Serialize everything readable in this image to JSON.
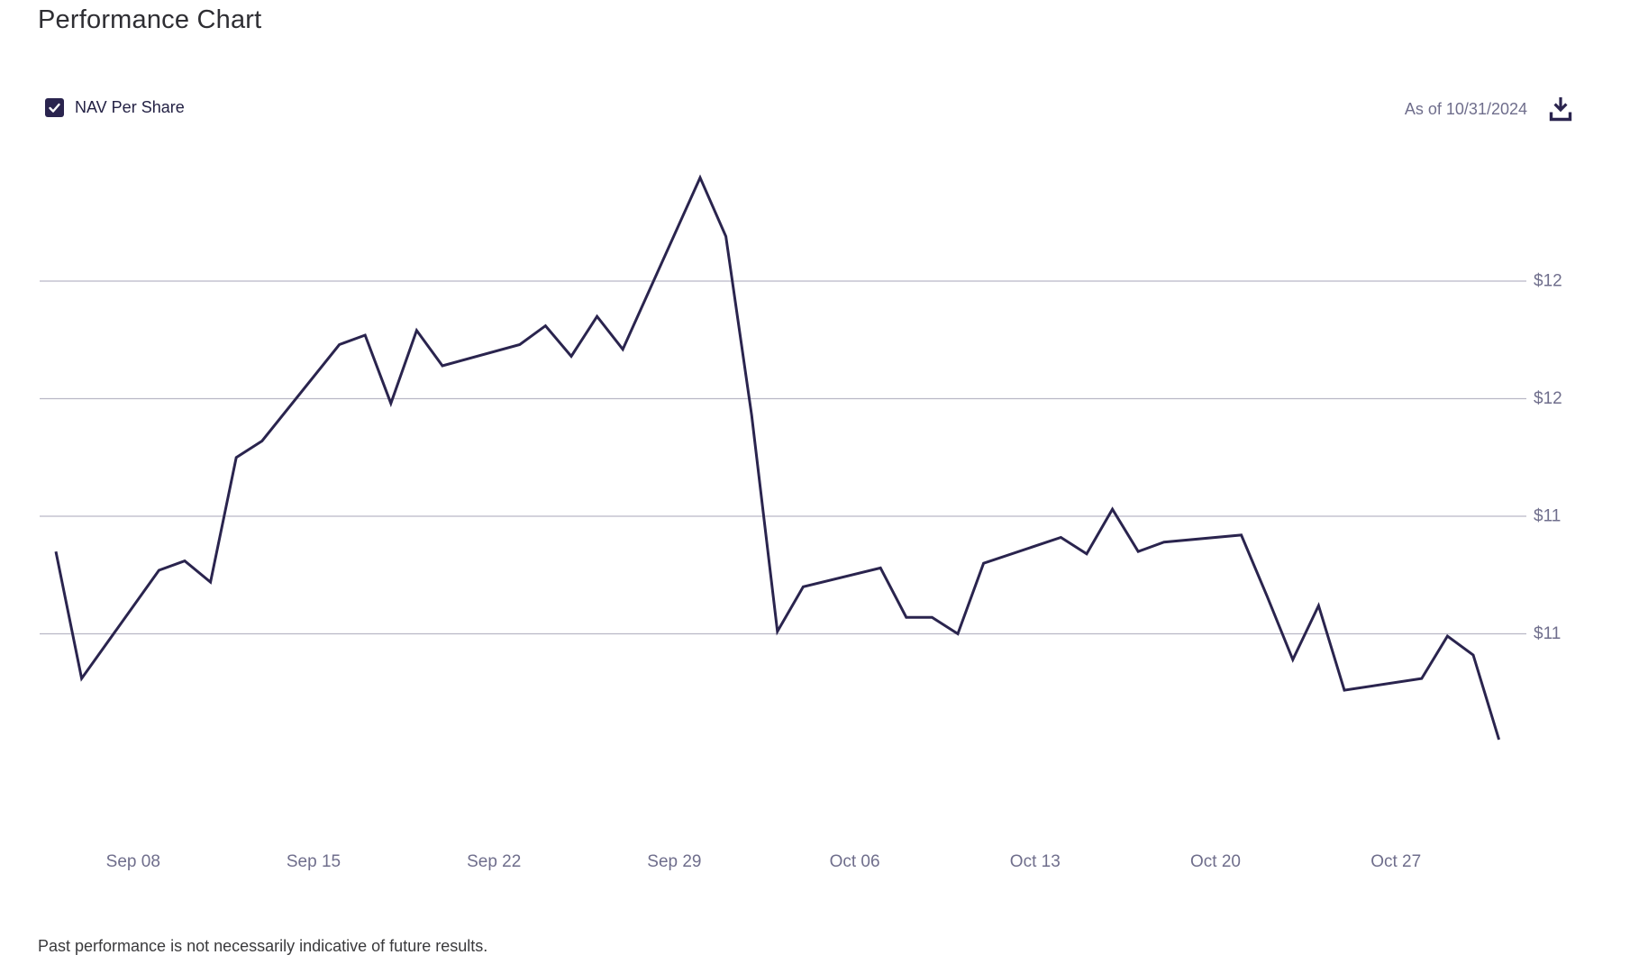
{
  "page": {
    "title": "Performance Chart"
  },
  "legend": {
    "label": "NAV Per Share",
    "checked": true
  },
  "toolbar": {
    "as_of": "As of 10/31/2024",
    "download_icon": "download-icon"
  },
  "footer": {
    "disclaimer": "Past performance is not necessarily indicative of future results."
  },
  "colors": {
    "line": "#2a244e",
    "checkbox": "#2a244e",
    "icon": "#2a244e",
    "axis_text": "#6f6e8c",
    "gridline": "#b9b8c6",
    "title_text": "#2e2e33",
    "legend_text": "#232144",
    "footer_text": "#3a3a3c"
  },
  "chart_data": {
    "type": "line",
    "title": "Performance Chart",
    "legend_position": "top-left",
    "grid": "horizontal-only",
    "y_axis_side": "right",
    "ylim": [
      10.2,
      12.8
    ],
    "y_gridlines": [
      {
        "value": 12.25,
        "label": "$12"
      },
      {
        "value": 11.75,
        "label": "$12"
      },
      {
        "value": 11.25,
        "label": "$11"
      },
      {
        "value": 10.75,
        "label": "$11"
      }
    ],
    "x_ticks": [
      {
        "date": "2024-09-08",
        "label": "Sep 08"
      },
      {
        "date": "2024-09-15",
        "label": "Sep 15"
      },
      {
        "date": "2024-09-22",
        "label": "Sep 22"
      },
      {
        "date": "2024-09-29",
        "label": "Sep 29"
      },
      {
        "date": "2024-10-06",
        "label": "Oct 06"
      },
      {
        "date": "2024-10-13",
        "label": "Oct 13"
      },
      {
        "date": "2024-10-20",
        "label": "Oct 20"
      },
      {
        "date": "2024-10-27",
        "label": "Oct 27"
      }
    ],
    "series": [
      {
        "name": "NAV Per Share",
        "x": [
          "2024-09-05",
          "2024-09-06",
          "2024-09-09",
          "2024-09-10",
          "2024-09-11",
          "2024-09-12",
          "2024-09-13",
          "2024-09-16",
          "2024-09-17",
          "2024-09-18",
          "2024-09-19",
          "2024-09-20",
          "2024-09-23",
          "2024-09-24",
          "2024-09-25",
          "2024-09-26",
          "2024-09-27",
          "2024-09-30",
          "2024-10-01",
          "2024-10-02",
          "2024-10-03",
          "2024-10-04",
          "2024-10-07",
          "2024-10-08",
          "2024-10-09",
          "2024-10-10",
          "2024-10-11",
          "2024-10-14",
          "2024-10-15",
          "2024-10-16",
          "2024-10-17",
          "2024-10-18",
          "2024-10-21",
          "2024-10-22",
          "2024-10-23",
          "2024-10-24",
          "2024-10-25",
          "2024-10-28",
          "2024-10-29",
          "2024-10-30",
          "2024-10-31"
        ],
        "values": [
          11.1,
          10.56,
          11.02,
          11.06,
          10.97,
          11.5,
          11.57,
          11.98,
          12.02,
          11.73,
          12.04,
          11.89,
          11.98,
          12.06,
          11.93,
          12.1,
          11.96,
          12.69,
          12.44,
          11.68,
          10.76,
          10.95,
          11.03,
          10.82,
          10.82,
          10.75,
          11.05,
          11.16,
          11.09,
          11.28,
          11.1,
          11.14,
          11.17,
          10.91,
          10.64,
          10.87,
          10.51,
          10.56,
          10.74,
          10.66,
          10.3
        ]
      }
    ]
  }
}
